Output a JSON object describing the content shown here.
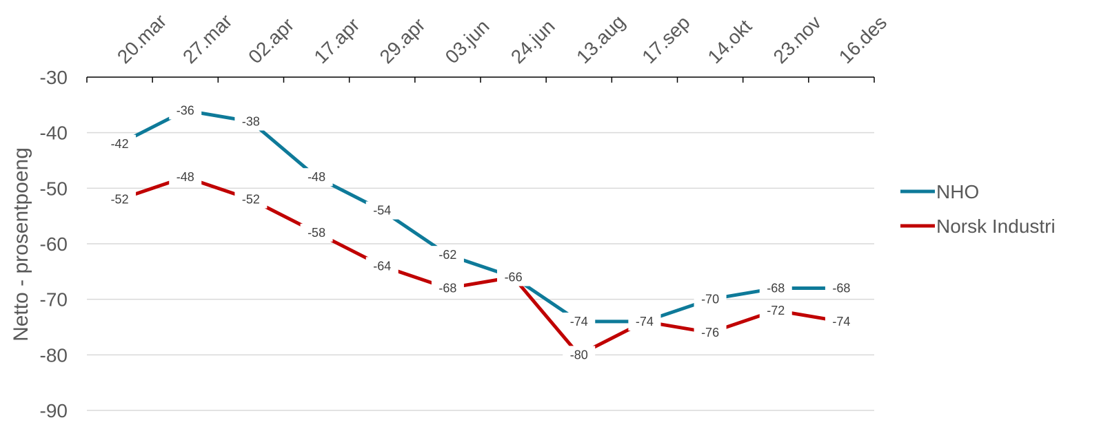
{
  "chart_data": {
    "type": "line",
    "categories": [
      "20.mar",
      "27.mar",
      "02.apr",
      "17.apr",
      "29.apr",
      "03.jun",
      "24.jun",
      "13.aug",
      "17.sep",
      "14.okt",
      "23.nov",
      "16.des"
    ],
    "series": [
      {
        "name": "NHO",
        "color": "#0e7a99",
        "values": [
          -42,
          -36,
          -38,
          -48,
          -54,
          -62,
          -66,
          -74,
          -74,
          -70,
          -68,
          -68
        ]
      },
      {
        "name": "Norsk Industri",
        "color": "#c00000",
        "values": [
          -52,
          -48,
          -52,
          -58,
          -64,
          -68,
          -66,
          -80,
          -74,
          -76,
          -72,
          -74
        ]
      }
    ],
    "ylabel": "Netto - prosentpoeng",
    "ylim": [
      -90,
      -30
    ],
    "yticks": [
      -30,
      -40,
      -50,
      -60,
      -70,
      -80,
      -90
    ],
    "x_axis_position": "top",
    "grid": true,
    "legend_position": "right"
  }
}
